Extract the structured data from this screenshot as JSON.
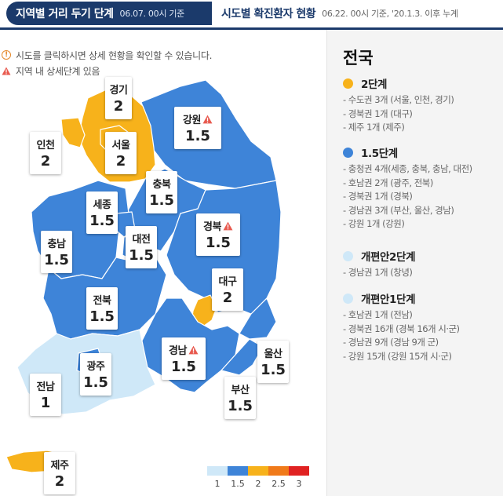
{
  "tabs": {
    "active": {
      "title": "지역별 거리 두기 단계",
      "date": "06.07. 00시 기준"
    },
    "inactive": {
      "title": "시도별 확진환자 현황",
      "date": "06.22. 00시 기준, '20.1.3. 이후 누계"
    }
  },
  "notes": {
    "click_hint": "시도를 클릭하시면 상세 현황을 확인할 수 있습니다.",
    "detail_hint": "지역 내 상세단계 있음"
  },
  "colors": {
    "level_1": "#cfe8f8",
    "level_1_5": "#3e84d8",
    "level_2": "#f7b21b",
    "level_2_5": "#f07a1a",
    "level_3": "#e02222"
  },
  "regions": [
    {
      "name": "경기",
      "value": "2",
      "warning": false
    },
    {
      "name": "인천",
      "value": "2",
      "warning": false
    },
    {
      "name": "서울",
      "value": "2",
      "warning": false
    },
    {
      "name": "강원",
      "value": "1.5",
      "warning": true
    },
    {
      "name": "충북",
      "value": "1.5",
      "warning": false
    },
    {
      "name": "세종",
      "value": "1.5",
      "warning": false
    },
    {
      "name": "경북",
      "value": "1.5",
      "warning": true
    },
    {
      "name": "대전",
      "value": "1.5",
      "warning": false
    },
    {
      "name": "충남",
      "value": "1.5",
      "warning": false
    },
    {
      "name": "대구",
      "value": "2",
      "warning": false
    },
    {
      "name": "전북",
      "value": "1.5",
      "warning": false
    },
    {
      "name": "경남",
      "value": "1.5",
      "warning": true
    },
    {
      "name": "울산",
      "value": "1.5",
      "warning": false
    },
    {
      "name": "광주",
      "value": "1.5",
      "warning": false
    },
    {
      "name": "전남",
      "value": "1",
      "warning": false
    },
    {
      "name": "부산",
      "value": "1.5",
      "warning": false
    },
    {
      "name": "제주",
      "value": "2",
      "warning": false
    }
  ],
  "scale": [
    "1",
    "1.5",
    "2",
    "2.5",
    "3"
  ],
  "panel": {
    "title": "전국",
    "groups": [
      {
        "title": "2단계",
        "color": "#f7b21b",
        "items": [
          "- 수도권 3개 (서울, 인천, 경기)",
          "- 경북권 1개 (대구)",
          "- 제주 1개 (제주)"
        ]
      },
      {
        "title": "1.5단계",
        "color": "#3e84d8",
        "items": [
          "- 충청권 4개(세종, 충북, 충남, 대전)",
          "- 호남권 2개 (광주, 전북)",
          "- 경북권 1개 (경북)",
          "- 경남권 3개 (부산, 울산, 경남)",
          "- 강원 1개 (강원)"
        ]
      },
      {
        "title": "개편안2단계",
        "color": "#cfe8f8",
        "items": [
          "- 경남권 1개 (창녕)"
        ]
      },
      {
        "title": "개편안1단계",
        "color": "#cfe8f8",
        "items": [
          "- 호남권 1개 (전남)",
          "- 경북권 16개 (경북 16개 시·군)",
          "- 경남권 9개 (경남 9개 군)",
          "- 강원 15개 (강원 15개 시·군)"
        ]
      }
    ]
  }
}
